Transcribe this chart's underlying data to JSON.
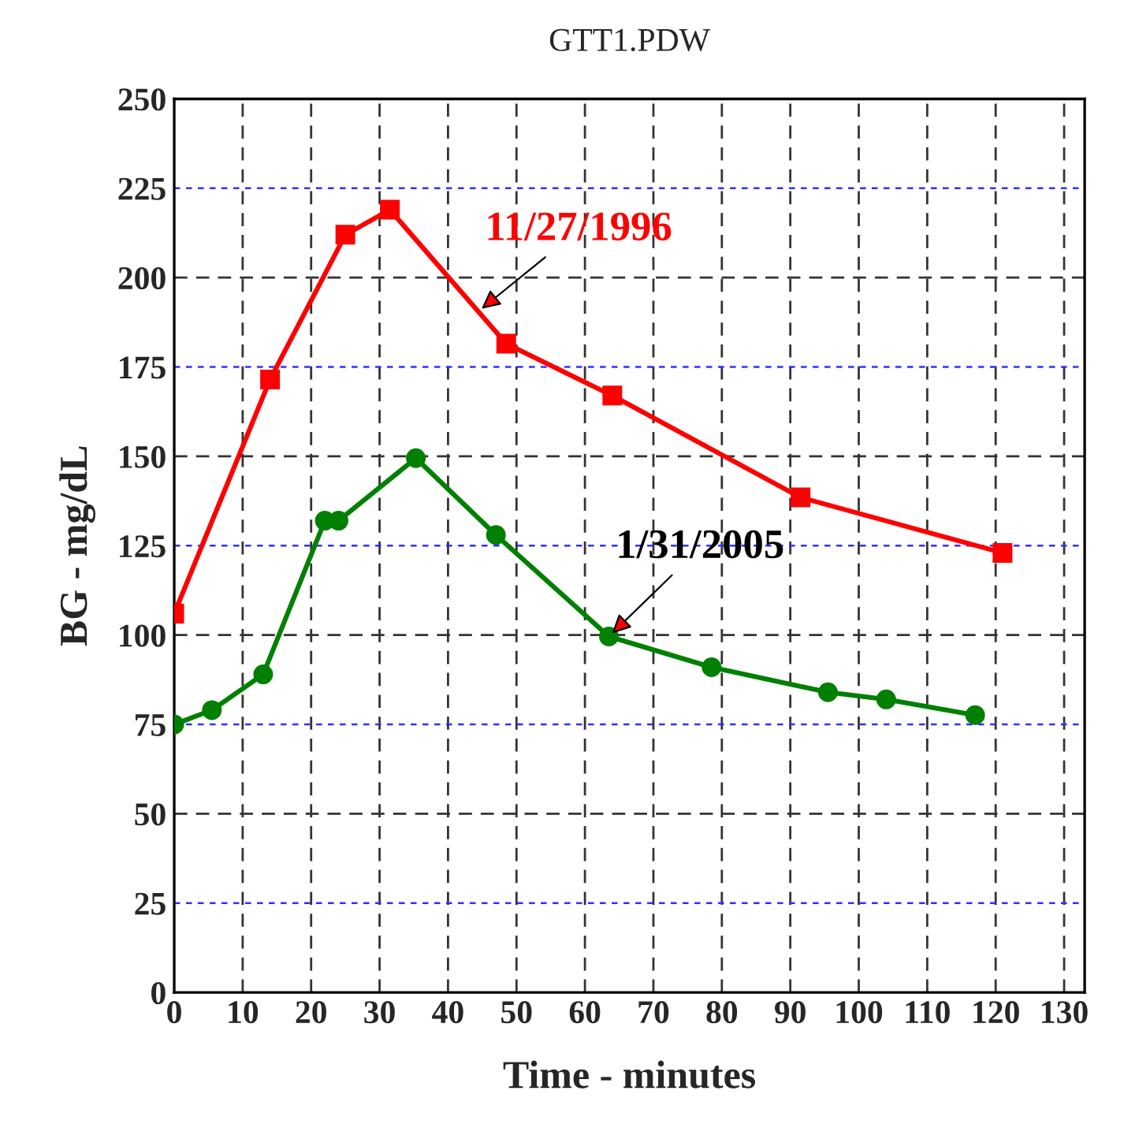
{
  "chart_data": {
    "type": "line",
    "title": "GTT1.PDW",
    "xlabel": "Time - minutes",
    "ylabel": "BG - mg/dL",
    "series": [
      {
        "color": "#ff0000",
        "marker": "square",
        "x": [
          0,
          14,
          25,
          31.5,
          48.5,
          64,
          91.5,
          121
        ],
        "values": [
          106,
          171.5,
          212,
          219,
          181.5,
          167,
          138.5,
          123
        ]
      },
      {
        "color": "#008000",
        "marker": "circle",
        "x": [
          0,
          5.5,
          13,
          22,
          24,
          35.3,
          47,
          63.5,
          78.5,
          95.5,
          104,
          117
        ],
        "values": [
          75,
          79,
          89,
          132,
          132,
          149.5,
          128,
          99.6,
          91,
          84,
          82,
          77.6
        ]
      }
    ],
    "annotations": [
      {
        "text": "11/27/1996",
        "x": 44.4,
        "y": 190.5
      },
      {
        "text": "1/31/2005",
        "x": 63.5,
        "y": 99.6
      }
    ],
    "xlim": [
      0,
      133
    ],
    "xticks": [
      0,
      10,
      20,
      30,
      40,
      50,
      60,
      70,
      80,
      90,
      100,
      110,
      120,
      130
    ],
    "ylim": [
      0,
      250
    ],
    "yticks": [
      0,
      25,
      50,
      75,
      100,
      125,
      150,
      175,
      200,
      225,
      250
    ],
    "grid": true,
    "line_style": "solid"
  }
}
